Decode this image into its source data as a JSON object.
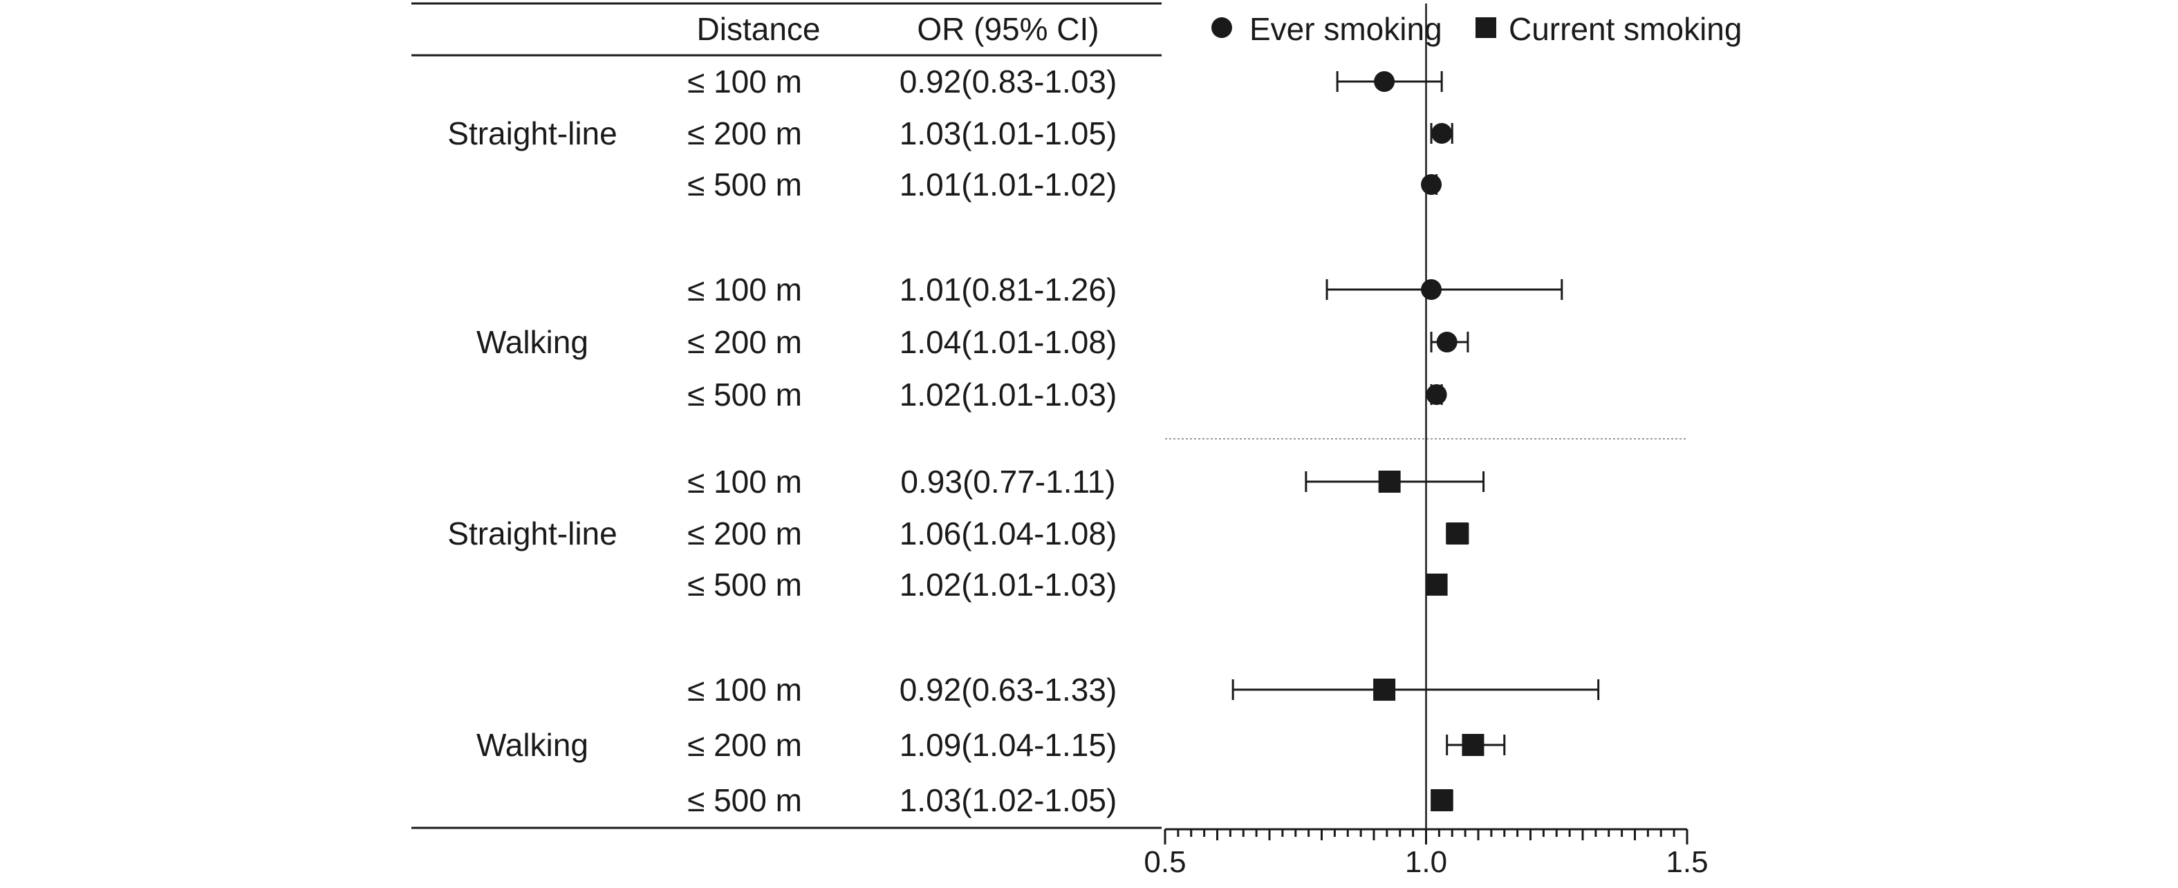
{
  "chart_data": {
    "type": "forest",
    "columns": {
      "distance": "Distance",
      "or": "OR (95% CI)"
    },
    "legend": {
      "position": "top",
      "items": [
        {
          "label": "Ever smoking",
          "marker": "circle"
        },
        {
          "label": "Current smoking",
          "marker": "square"
        }
      ]
    },
    "x_axis": {
      "range": [
        0.5,
        1.5
      ],
      "ticks": [
        "0.5",
        "1.0",
        "1.5"
      ],
      "reference": 1.0
    },
    "colors": {
      "ink": "#1a1a1a",
      "separator": "#9a9a9a"
    },
    "groups": [
      {
        "label": "Straight-line",
        "series": "Ever smoking",
        "marker": "circle",
        "rows": [
          {
            "distance": "≤ 100 m",
            "text": "0.92(0.83-1.03)",
            "or": 0.92,
            "lo": 0.83,
            "hi": 1.03
          },
          {
            "distance": "≤ 200 m",
            "text": "1.03(1.01-1.05)",
            "or": 1.03,
            "lo": 1.01,
            "hi": 1.05
          },
          {
            "distance": "≤ 500 m",
            "text": "1.01(1.01-1.02)",
            "or": 1.01,
            "lo": 1.01,
            "hi": 1.02
          }
        ]
      },
      {
        "label": "Walking",
        "series": "Ever smoking",
        "marker": "circle",
        "rows": [
          {
            "distance": "≤ 100 m",
            "text": "1.01(0.81-1.26)",
            "or": 1.01,
            "lo": 0.81,
            "hi": 1.26
          },
          {
            "distance": "≤ 200 m",
            "text": "1.04(1.01-1.08)",
            "or": 1.04,
            "lo": 1.01,
            "hi": 1.08
          },
          {
            "distance": "≤ 500 m",
            "text": "1.02(1.01-1.03)",
            "or": 1.02,
            "lo": 1.01,
            "hi": 1.03
          }
        ]
      },
      {
        "label": "Straight-line",
        "series": "Current smoking",
        "marker": "square",
        "rows": [
          {
            "distance": "≤ 100 m",
            "text": "0.93(0.77-1.11)",
            "or": 0.93,
            "lo": 0.77,
            "hi": 1.11
          },
          {
            "distance": "≤ 200 m",
            "text": "1.06(1.04-1.08)",
            "or": 1.06,
            "lo": 1.04,
            "hi": 1.08
          },
          {
            "distance": "≤ 500 m",
            "text": "1.02(1.01-1.03)",
            "or": 1.02,
            "lo": 1.01,
            "hi": 1.03
          }
        ]
      },
      {
        "label": "Walking",
        "series": "Current smoking",
        "marker": "square",
        "rows": [
          {
            "distance": "≤ 100 m",
            "text": "0.92(0.63-1.33)",
            "or": 0.92,
            "lo": 0.63,
            "hi": 1.33
          },
          {
            "distance": "≤ 200 m",
            "text": "1.09(1.04-1.15)",
            "or": 1.09,
            "lo": 1.04,
            "hi": 1.15
          },
          {
            "distance": "≤ 500 m",
            "text": "1.03(1.02-1.05)",
            "or": 1.03,
            "lo": 1.02,
            "hi": 1.05
          }
        ]
      }
    ]
  }
}
